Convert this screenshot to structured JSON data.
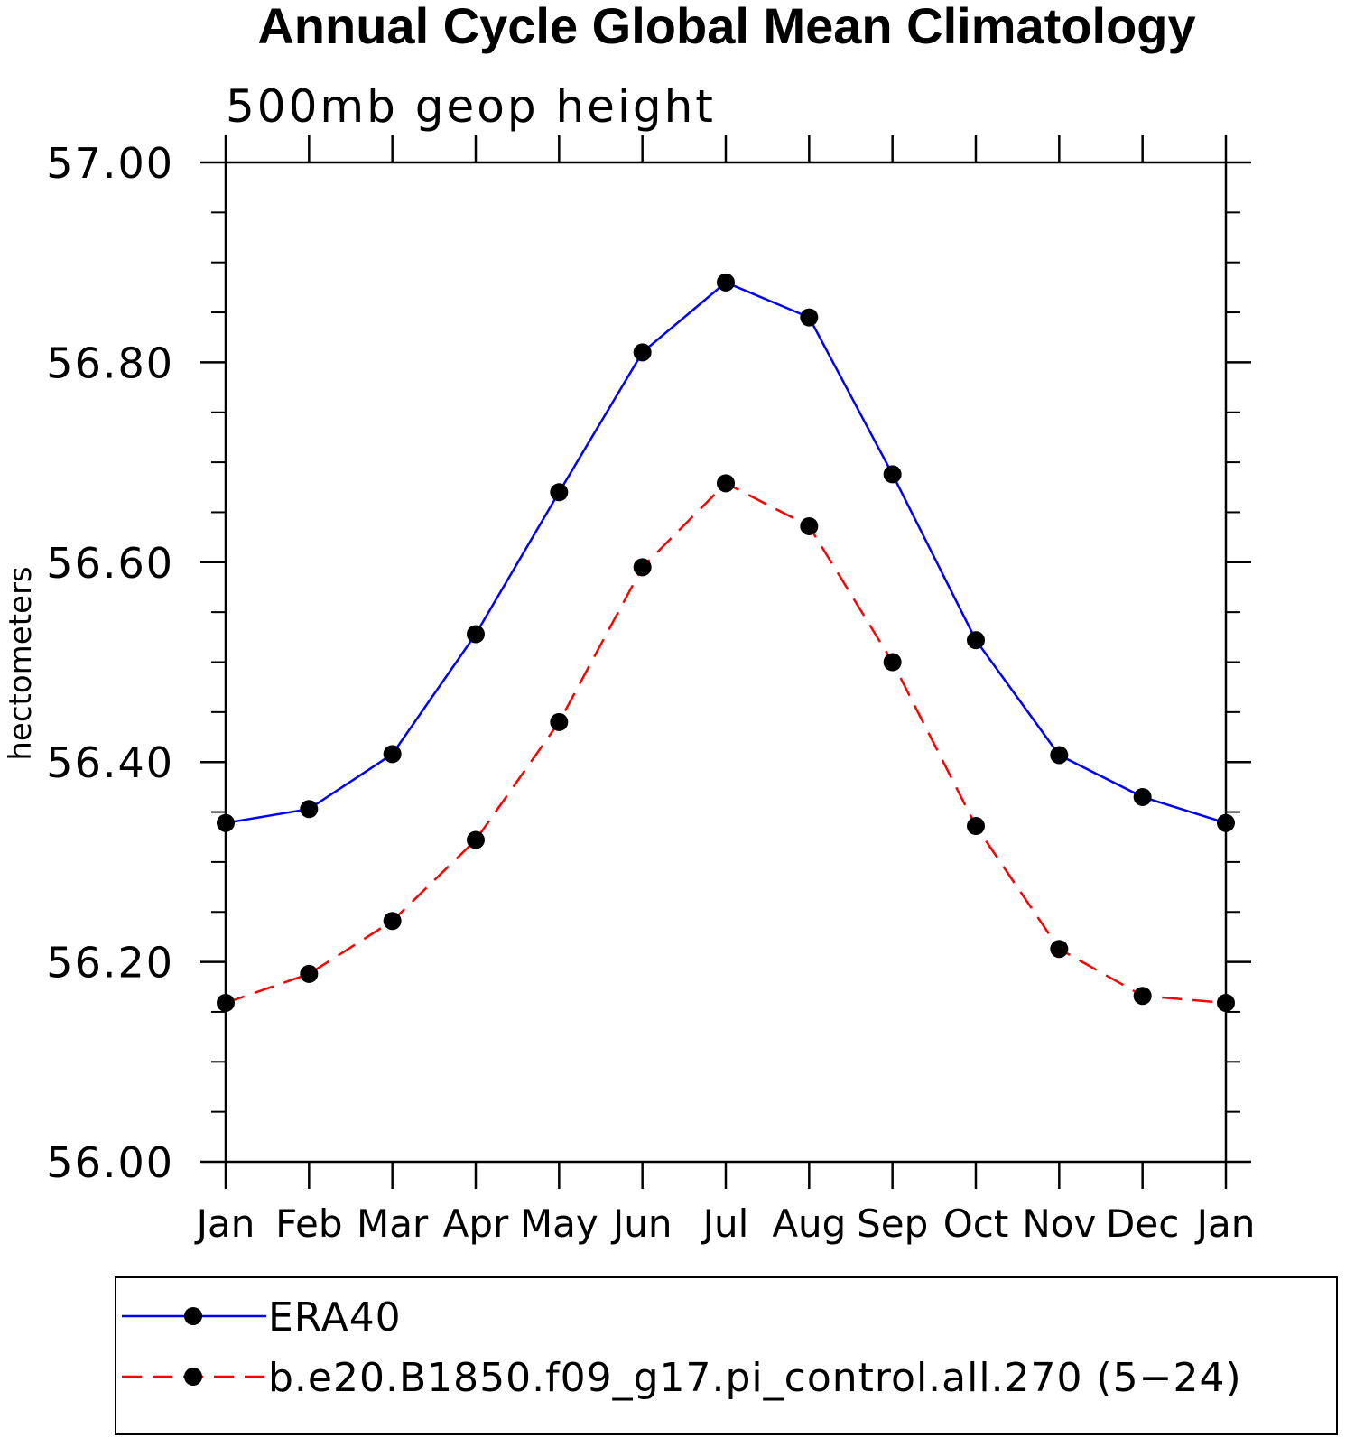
{
  "chart_data": {
    "type": "line",
    "title": "Annual Cycle Global Mean Climatology",
    "subtitle": "500mb geop height",
    "xlabel": "",
    "ylabel": "hectometers",
    "ylim": [
      56.0,
      57.0
    ],
    "yticks": [
      "56.00",
      "56.20",
      "56.40",
      "56.60",
      "56.80",
      "57.00"
    ],
    "categories": [
      "Jan",
      "Feb",
      "Mar",
      "Apr",
      "May",
      "Jun",
      "Jul",
      "Aug",
      "Sep",
      "Oct",
      "Nov",
      "Dec",
      "Jan"
    ],
    "series": [
      {
        "name": "ERA40",
        "color": "#0000ff",
        "dash": "solid",
        "values": [
          56.339,
          56.353,
          56.408,
          56.528,
          56.67,
          56.81,
          56.88,
          56.845,
          56.688,
          56.522,
          56.407,
          56.365,
          56.339
        ]
      },
      {
        "name": "b.e20.B1850.f09_g17.pi_control.all.270 (5−24)",
        "color": "#ff0000",
        "dash": "dashed",
        "values": [
          56.159,
          56.188,
          56.241,
          56.322,
          56.44,
          56.595,
          56.679,
          56.636,
          56.5,
          56.336,
          56.213,
          56.166,
          56.159
        ]
      }
    ],
    "legend": {
      "placement": "bottom",
      "entries": [
        "ERA40",
        "b.e20.B1850.f09_g17.pi_control.all.270 (5−24)"
      ]
    },
    "grid": false
  }
}
